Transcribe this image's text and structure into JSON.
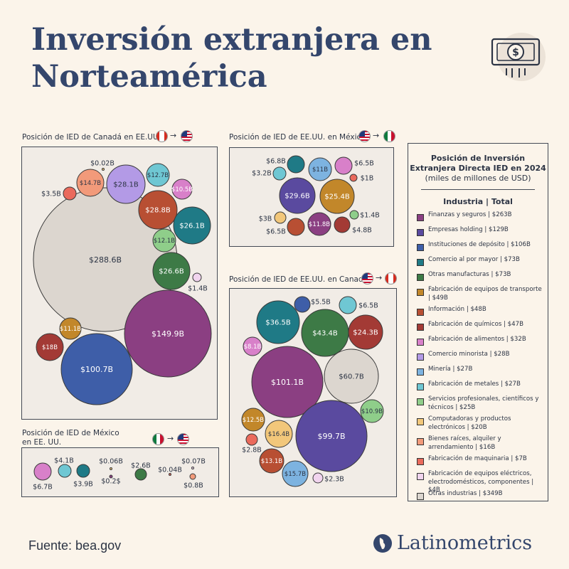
{
  "title": {
    "line1": "Inversión extranjera en",
    "line2": "Norteamérica"
  },
  "icon": "money-bill-icon",
  "colors": {
    "title": "#34466c",
    "background": "#fbf4ea",
    "panel": "#f1ece6"
  },
  "source": "Fuente: bea.gov",
  "brand": "Latinometrics",
  "legend": {
    "title_line1": "Posición de Inversión",
    "title_line2": "Extranjera Directa IED en 2024",
    "subtitle": "(miles de millones de USD)",
    "header": "Industria | Total",
    "items": [
      {
        "label": "Finanzas y seguros | $263B",
        "color": "#8b3f82"
      },
      {
        "label": "Empresas holding | $129B",
        "color": "#5a4a9f"
      },
      {
        "label": "Instituciones de depósito  | $106B",
        "color": "#3e5ea8"
      },
      {
        "label": "Comercio al por mayor | $73B",
        "color": "#1f7a86"
      },
      {
        "label": "Otras manufacturas | $73B",
        "color": "#3d7a46"
      },
      {
        "label": "Fabricación de equipos de transporte | $49B",
        "color": "#c2872a"
      },
      {
        "label": "Información | $48B",
        "color": "#b84f33"
      },
      {
        "label": "Fabricación de químicos | $47B",
        "color": "#a33a35"
      },
      {
        "label": "Fabricación de alimentos | $32B",
        "color": "#d880c9"
      },
      {
        "label": "Comercio minorista | $28B",
        "color": "#b39ae6"
      },
      {
        "label": "Minería | $27B",
        "color": "#7db3e0"
      },
      {
        "label": "Fabricación de metales | $27B",
        "color": "#6fc7d3"
      },
      {
        "label": "Servicios profesionales, científicos y técnicos | $25B",
        "color": "#8fce8a"
      },
      {
        "label": "Computadoras y productos electrónicos | $20B",
        "color": "#f2c77a"
      },
      {
        "label": "Bienes raíces, alquiler y arrendamiento | $16B",
        "color": "#f29a7a"
      },
      {
        "label": "Fabricación de maquinaria | $7B",
        "color": "#ea6a5c"
      },
      {
        "label": "Fabricación de equipos eléctricos, electrodomésticos, componentes | $4B",
        "color": "#f1d4ee"
      },
      {
        "label": "Otras industrias | $349B",
        "color": "#dcd6cf"
      }
    ]
  },
  "chart_data": [
    {
      "type": "bubble",
      "title": "Posición de IED de Canadá en EE.UU.",
      "from_flag": "canada-flag-icon",
      "to_flag": "usa-flag-icon",
      "points": [
        {
          "label": "$288.6B",
          "value": 288.6,
          "industry": "Otras industrias"
        },
        {
          "label": "$149.9B",
          "value": 149.9,
          "industry": "Finanzas y seguros"
        },
        {
          "label": "$100.7B",
          "value": 100.7,
          "industry": "Instituciones de depósito"
        },
        {
          "label": "$28.1B",
          "value": 28.1,
          "industry": "Comercio minorista"
        },
        {
          "label": "$28.8B",
          "value": 28.8,
          "industry": "Información"
        },
        {
          "label": "$26.1B",
          "value": 26.1,
          "industry": "Comercio al por mayor"
        },
        {
          "label": "$26.6B",
          "value": 26.6,
          "industry": "Otras manufacturas"
        },
        {
          "label": "$18B",
          "value": 18,
          "industry": "Fabricación de químicos"
        },
        {
          "label": "$14.7B",
          "value": 14.7,
          "industry": "Bienes raíces, alquiler y arrendamiento"
        },
        {
          "label": "$12.7B",
          "value": 12.7,
          "industry": "Fabricación de metales"
        },
        {
          "label": "$12.1B",
          "value": 12.1,
          "industry": "Servicios profesionales, científicos y técnicos"
        },
        {
          "label": "$11.1B",
          "value": 11.1,
          "industry": "Fabricación de equipos de transporte"
        },
        {
          "label": "$10.5B",
          "value": 10.5,
          "industry": "Fabricación de alimentos"
        },
        {
          "label": "$3.5B",
          "value": 3.5,
          "industry": "Fabricación de maquinaria"
        },
        {
          "label": "$1.4B",
          "value": 1.4,
          "industry": "Fabricación de equipos eléctricos, electrodomésticos, componentes"
        },
        {
          "label": "$0.02B",
          "value": 0.02,
          "industry": "Computadoras y productos electrónicos"
        }
      ]
    },
    {
      "type": "bubble",
      "title": "Posición de IED de EE.UU. en México",
      "from_flag": "usa-flag-icon",
      "to_flag": "mexico-flag-icon",
      "points": [
        {
          "label": "$29.6B",
          "value": 29.6,
          "industry": "Empresas holding"
        },
        {
          "label": "$25.4B",
          "value": 25.4,
          "industry": "Fabricación de equipos de transporte"
        },
        {
          "label": "$11.8B",
          "value": 11.8,
          "industry": "Finanzas y seguros"
        },
        {
          "label": "$11B",
          "value": 11,
          "industry": "Minería"
        },
        {
          "label": "$6.8B",
          "value": 6.8,
          "industry": "Comercio al por mayor"
        },
        {
          "label": "$6.5B",
          "value": 6.5,
          "industry": "Fabricación de alimentos"
        },
        {
          "label": "$6.5B",
          "value": 6.5,
          "industry": "Información"
        },
        {
          "label": "$4.8B",
          "value": 4.8,
          "industry": "Fabricación de químicos"
        },
        {
          "label": "$3.2B",
          "value": 3.2,
          "industry": "Fabricación de metales"
        },
        {
          "label": "$3B",
          "value": 3,
          "industry": "Computadoras y productos electrónicos"
        },
        {
          "label": "$1.4B",
          "value": 1.4,
          "industry": "Servicios profesionales, científicos y técnicos"
        },
        {
          "label": "$1B",
          "value": 1,
          "industry": "Fabricación de maquinaria"
        }
      ]
    },
    {
      "type": "bubble",
      "title": "Posición de IED de EE.UU. en Canadá",
      "from_flag": "usa-flag-icon",
      "to_flag": "canada-flag-icon",
      "points": [
        {
          "label": "$101.1B",
          "value": 101.1,
          "industry": "Finanzas y seguros"
        },
        {
          "label": "$99.7B",
          "value": 99.7,
          "industry": "Empresas holding"
        },
        {
          "label": "$60.7B",
          "value": 60.7,
          "industry": "Otras industrias"
        },
        {
          "label": "$43.4B",
          "value": 43.4,
          "industry": "Otras manufacturas"
        },
        {
          "label": "$36.5B",
          "value": 36.5,
          "industry": "Comercio al por mayor"
        },
        {
          "label": "$24.3B",
          "value": 24.3,
          "industry": "Fabricación de químicos"
        },
        {
          "label": "$16.4B",
          "value": 16.4,
          "industry": "Computadoras y productos electrónicos"
        },
        {
          "label": "$15.7B",
          "value": 15.7,
          "industry": "Minería"
        },
        {
          "label": "$13.1B",
          "value": 13.1,
          "industry": "Información"
        },
        {
          "label": "$12.5B",
          "value": 12.5,
          "industry": "Fabricación de equipos de transporte"
        },
        {
          "label": "$10.9B",
          "value": 10.9,
          "industry": "Servicios profesionales, científicos y técnicos"
        },
        {
          "label": "$8.1B",
          "value": 8.1,
          "industry": "Fabricación de alimentos"
        },
        {
          "label": "$6.5B",
          "value": 6.5,
          "industry": "Fabricación de metales"
        },
        {
          "label": "$5.5B",
          "value": 5.5,
          "industry": "Instituciones de depósito"
        },
        {
          "label": "$2.8B",
          "value": 2.8,
          "industry": "Fabricación de maquinaria"
        },
        {
          "label": "$2.3B",
          "value": 2.3,
          "industry": "Fabricación de equipos eléctricos, electrodomésticos, componentes"
        }
      ]
    },
    {
      "type": "bubble",
      "title": "Posición de IED de México en EE. UU.",
      "from_flag": "mexico-flag-icon",
      "to_flag": "usa-flag-icon",
      "points": [
        {
          "label": "$6.7B",
          "value": 6.7,
          "industry": "Fabricación de alimentos"
        },
        {
          "label": "$4.1B",
          "value": 4.1,
          "industry": "Fabricación de metales"
        },
        {
          "label": "$3.9B",
          "value": 3.9,
          "industry": "Comercio al por mayor"
        },
        {
          "label": "$2.6B",
          "value": 2.6,
          "industry": "Otras manufacturas"
        },
        {
          "label": "$0.8B",
          "value": 0.8,
          "industry": "Bienes raíces, alquiler y arrendamiento"
        },
        {
          "label": "$0.2$",
          "value": 0.2,
          "industry": "Finanzas y seguros"
        },
        {
          "label": "$0.06B",
          "value": 0.06,
          "industry": "Computadoras y productos electrónicos"
        },
        {
          "label": "$0.04B",
          "value": 0.04,
          "industry": "Fabricación de maquinaria"
        },
        {
          "label": "$0.07B",
          "value": 0.07,
          "industry": "Fabricación de equipos eléctricos, electrodomésticos, componentes"
        }
      ]
    }
  ]
}
